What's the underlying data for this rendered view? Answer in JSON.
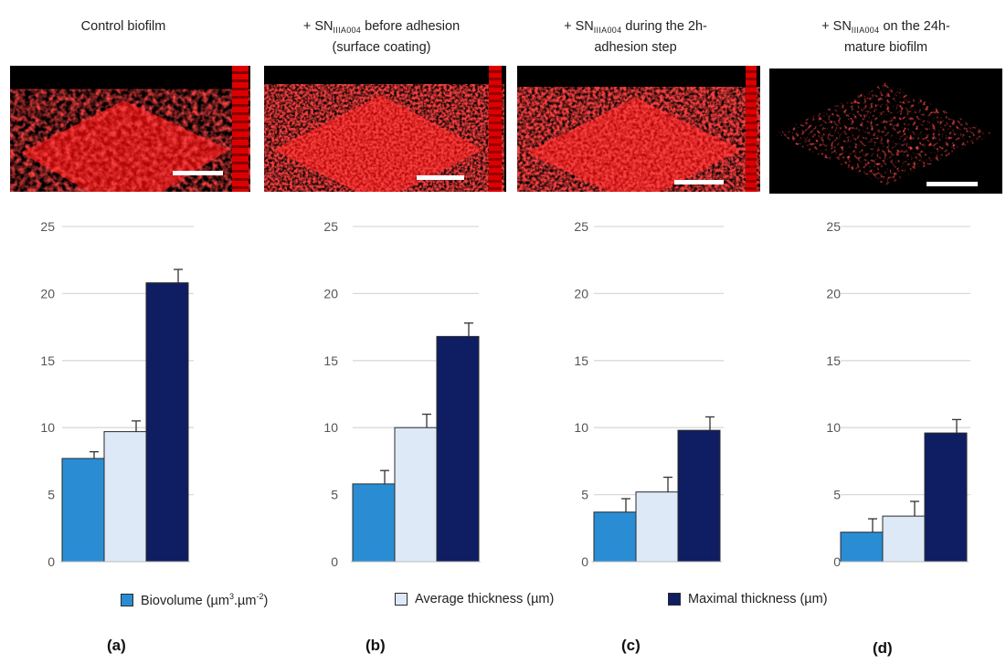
{
  "panels": [
    {
      "title_line1": "Control biofilm",
      "title_line2": "",
      "letter": "(a)"
    },
    {
      "title_prefix": "+ SN",
      "title_sub": "IIIA004",
      "title_line1_suffix": " before adhesion",
      "title_line2": "(surface coating)",
      "letter": "(b)"
    },
    {
      "title_prefix": "+ SN",
      "title_sub": "IIIA004",
      "title_line1_suffix": " during the 2h-",
      "title_line2": "adhesion step",
      "letter": "(c)"
    },
    {
      "title_prefix": "+ SN",
      "title_sub": "IIIA004",
      "title_line1_suffix": " on the 24h-",
      "title_line2": "mature biofilm",
      "letter": "(d)"
    }
  ],
  "legend": {
    "biovolume": {
      "label": "Biovolume (µm",
      "sup1": "3",
      "mid": ".µm",
      "sup2": "-2",
      "end": ")"
    },
    "average": {
      "label": "Average thickness (µm)"
    },
    "maximal": {
      "label": "Maximal thickness (µm)"
    }
  },
  "colors": {
    "biovolume": "#2a8dd4",
    "average": "#dde9f7",
    "maximal": "#0f1e62",
    "gridline": "#d9d9d9",
    "micrograph_red": "#e01010"
  },
  "chart_data": [
    {
      "type": "bar",
      "categories": [
        "Biovolume",
        "Average thickness",
        "Maximal thickness"
      ],
      "values": [
        7.7,
        9.7,
        20.8
      ],
      "errors": [
        0.5,
        0.8,
        1.0
      ],
      "ylim": [
        0,
        25
      ],
      "yticks": [
        0,
        5,
        10,
        15,
        20,
        25
      ],
      "grid": true
    },
    {
      "type": "bar",
      "categories": [
        "Biovolume",
        "Average thickness",
        "Maximal thickness"
      ],
      "values": [
        5.8,
        10.0,
        16.8
      ],
      "errors": [
        1.0,
        1.0,
        1.0
      ],
      "ylim": [
        0,
        25
      ],
      "yticks": [
        0,
        5,
        10,
        15,
        20,
        25
      ],
      "grid": true
    },
    {
      "type": "bar",
      "categories": [
        "Biovolume",
        "Average thickness",
        "Maximal thickness"
      ],
      "values": [
        3.7,
        5.2,
        9.8
      ],
      "errors": [
        1.0,
        1.1,
        1.0
      ],
      "ylim": [
        0,
        25
      ],
      "yticks": [
        0,
        5,
        10,
        15,
        20,
        25
      ],
      "grid": true
    },
    {
      "type": "bar",
      "categories": [
        "Biovolume",
        "Average thickness",
        "Maximal thickness"
      ],
      "values": [
        2.2,
        3.4,
        9.6
      ],
      "errors": [
        1.0,
        1.1,
        1.0
      ],
      "ylim": [
        0,
        25
      ],
      "yticks": [
        0,
        5,
        10,
        15,
        20,
        25
      ],
      "grid": true
    }
  ]
}
